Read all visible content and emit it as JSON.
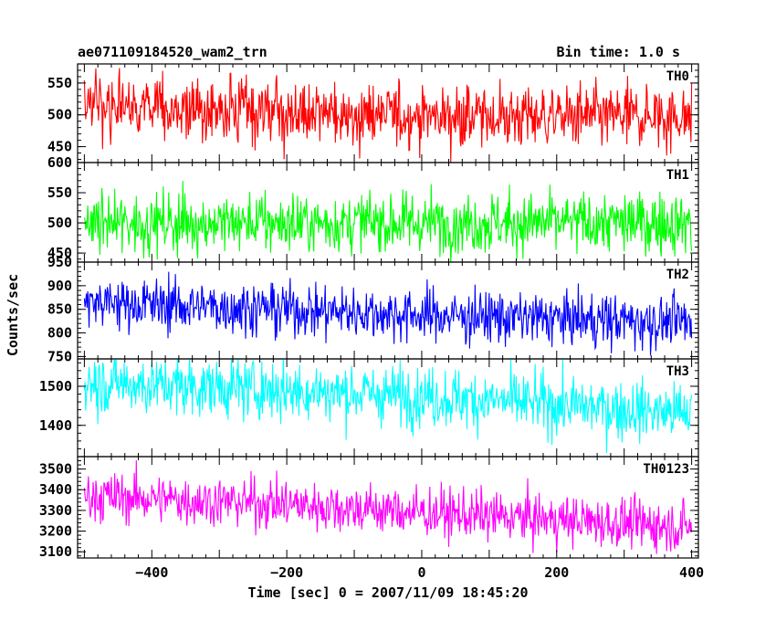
{
  "chart_data": {
    "type": "line",
    "title_left": "ae071109184520_wam2_trn",
    "title_right": "Bin time: 1.0 s",
    "xlabel": "Time [sec] 0 = 2007/11/09 18:45:20",
    "ylabel": "Counts/sec",
    "xlim": [
      -510,
      410
    ],
    "x_range_data": [
      -500,
      400
    ],
    "x_ticks": [
      -400,
      -200,
      0,
      200,
      400
    ],
    "x_tick_labels": [
      "−400",
      "−200",
      "0",
      "200",
      "400"
    ],
    "panels": [
      {
        "name": "TH0",
        "color": "#ff0000",
        "ylim": [
          425,
          580
        ],
        "y_ticks": [
          450,
          500,
          550
        ],
        "y_tick_labels": [
          "450",
          "500",
          "550"
        ],
        "trend": [
          [
            -500,
            508
          ],
          [
            -300,
            505
          ],
          [
            0,
            498
          ],
          [
            400,
            497
          ]
        ],
        "spread": 25
      },
      {
        "name": "TH1",
        "color": "#00ff00",
        "ylim": [
          435,
          600
        ],
        "y_ticks": [
          450,
          500,
          550,
          600
        ],
        "y_tick_labels": [
          "450",
          "500",
          "550",
          "600"
        ],
        "trend": [
          [
            -500,
            500
          ],
          [
            0,
            500
          ],
          [
            400,
            500
          ]
        ],
        "spread": 25
      },
      {
        "name": "TH2",
        "color": "#0000ff",
        "ylim": [
          745,
          950
        ],
        "y_ticks": [
          750,
          800,
          850,
          900,
          950
        ],
        "y_tick_labels": [
          "750",
          "800",
          "850",
          "900",
          "950"
        ],
        "trend": [
          [
            -500,
            865
          ],
          [
            -200,
            850
          ],
          [
            0,
            838
          ],
          [
            400,
            822
          ]
        ],
        "spread": 28
      },
      {
        "name": "TH3",
        "color": "#00ffff",
        "ylim": [
          1320,
          1570
        ],
        "y_ticks": [
          1400,
          1500
        ],
        "y_tick_labels": [
          "1400",
          "1500"
        ],
        "trend": [
          [
            -500,
            1510
          ],
          [
            -200,
            1490
          ],
          [
            0,
            1475
          ],
          [
            400,
            1430
          ]
        ],
        "spread": 38
      },
      {
        "name": "TH0123",
        "color": "#ff00ff",
        "ylim": [
          3070,
          3560
        ],
        "y_ticks": [
          3100,
          3200,
          3300,
          3400,
          3500
        ],
        "y_tick_labels": [
          "3100",
          "3200",
          "3300",
          "3400",
          "3500"
        ],
        "trend": [
          [
            -500,
            3370
          ],
          [
            -200,
            3330
          ],
          [
            0,
            3290
          ],
          [
            400,
            3220
          ]
        ],
        "spread": 60
      }
    ]
  }
}
